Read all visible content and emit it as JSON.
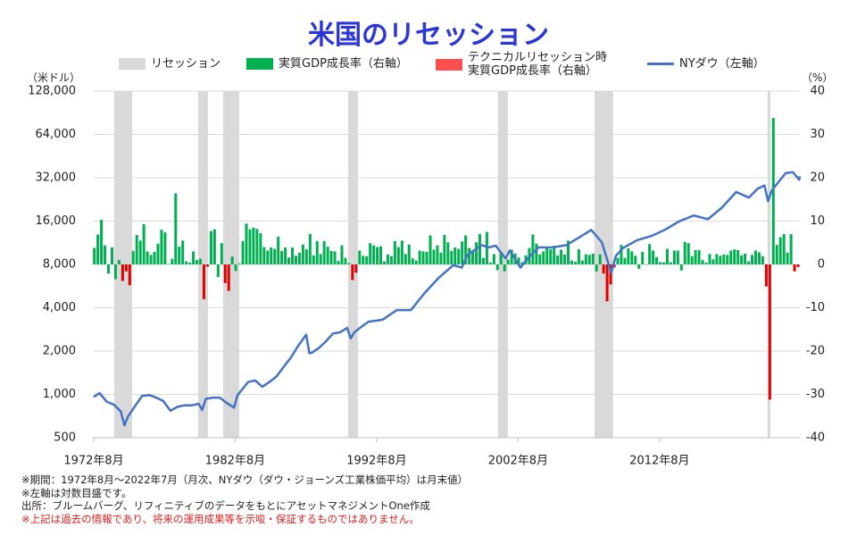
{
  "chart_data": {
    "type": "combo",
    "title": "米国のリセッション",
    "y_unit": "（米ドル）",
    "y2_unit": "（%）",
    "log_y": true,
    "grid": true,
    "xlim": [
      1972.583,
      2022.5
    ],
    "xticks": [
      {
        "value": 1972.583,
        "label": "1972年8月"
      },
      {
        "value": 1982.583,
        "label": "1982年8月"
      },
      {
        "value": 1992.583,
        "label": "1992年8月"
      },
      {
        "value": 2002.583,
        "label": "2002年8月"
      },
      {
        "value": 2012.583,
        "label": "2012年8月"
      }
    ],
    "ylim": [
      500,
      128000
    ],
    "yticks": [
      500,
      {
        "value": 1000,
        "label": "1,000"
      },
      {
        "value": 2000,
        "label": "2,000"
      },
      {
        "value": 4000,
        "label": "4,000"
      },
      {
        "value": 8000,
        "label": "8,000"
      },
      {
        "value": 16000,
        "label": "16,000"
      },
      {
        "value": 32000,
        "label": "32,000"
      },
      {
        "value": 64000,
        "label": "64,000"
      },
      {
        "value": 128000,
        "label": "128,000"
      }
    ],
    "y2lim": [
      -40,
      40
    ],
    "y2ticks": [
      -40,
      -30,
      -20,
      -10,
      0,
      10,
      20,
      30,
      40
    ],
    "recessions": {
      "name": "リセッション",
      "color": "#d9d9d9",
      "periods": [
        [
          1974.03,
          1975.3
        ],
        [
          1979.96,
          1980.66
        ],
        [
          1981.73,
          1982.87
        ],
        [
          1990.56,
          1991.26
        ],
        [
          2001.16,
          2001.86
        ],
        [
          2007.98,
          2009.3
        ],
        [
          2020.22,
          2020.41
        ]
      ]
    },
    "series": [
      {
        "name": "実質GDP成長率（右軸）",
        "kind": "bar",
        "axis": "y2",
        "color": "#00b050",
        "x": [
          1972.625,
          1972.875,
          1973.125,
          1973.375,
          1973.625,
          1973.875,
          1974.125,
          1974.375,
          1975.375,
          1975.625,
          1975.875,
          1976.125,
          1976.375,
          1976.625,
          1976.875,
          1977.125,
          1977.375,
          1977.625,
          1977.875,
          1978.125,
          1978.375,
          1978.625,
          1978.875,
          1979.125,
          1979.375,
          1979.625,
          1979.875,
          1980.125,
          1980.875,
          1981.125,
          1981.375,
          1981.625,
          1982.375,
          1982.625,
          1982.875,
          1983.125,
          1983.375,
          1983.625,
          1983.875,
          1984.125,
          1984.375,
          1984.625,
          1984.875,
          1985.125,
          1985.375,
          1985.625,
          1985.875,
          1986.125,
          1986.375,
          1986.625,
          1986.875,
          1987.125,
          1987.375,
          1987.625,
          1987.875,
          1988.125,
          1988.375,
          1988.625,
          1988.875,
          1989.125,
          1989.375,
          1989.625,
          1989.875,
          1990.125,
          1990.375,
          1990.625,
          1991.375,
          1991.625,
          1991.875,
          1992.125,
          1992.375,
          1992.625,
          1992.875,
          1993.125,
          1993.375,
          1993.625,
          1993.875,
          1994.125,
          1994.375,
          1994.625,
          1994.875,
          1995.125,
          1995.375,
          1995.625,
          1995.875,
          1996.125,
          1996.375,
          1996.625,
          1996.875,
          1997.125,
          1997.375,
          1997.625,
          1997.875,
          1998.125,
          1998.375,
          1998.625,
          1998.875,
          1999.125,
          1999.375,
          1999.625,
          1999.875,
          2000.125,
          2000.375,
          2000.625,
          2000.875,
          2001.125,
          2001.375,
          2001.625,
          2001.875,
          2002.125,
          2002.375,
          2002.625,
          2002.875,
          2003.125,
          2003.375,
          2003.625,
          2003.875,
          2004.125,
          2004.375,
          2004.625,
          2004.875,
          2005.125,
          2005.375,
          2005.625,
          2005.875,
          2006.125,
          2006.375,
          2006.625,
          2006.875,
          2007.125,
          2007.375,
          2007.625,
          2007.875,
          2008.125,
          2008.375,
          2009.625,
          2009.875,
          2010.125,
          2010.375,
          2010.625,
          2010.875,
          2011.125,
          2011.375,
          2011.625,
          2011.875,
          2012.125,
          2012.375,
          2012.625,
          2012.875,
          2013.125,
          2013.375,
          2013.625,
          2013.875,
          2014.125,
          2014.375,
          2014.625,
          2014.875,
          2015.125,
          2015.375,
          2015.625,
          2015.875,
          2016.125,
          2016.375,
          2016.625,
          2016.875,
          2017.125,
          2017.375,
          2017.625,
          2017.875,
          2018.125,
          2018.375,
          2018.625,
          2018.875,
          2019.125,
          2019.375,
          2019.625,
          2019.875,
          2020.625,
          2020.875,
          2021.125,
          2021.375,
          2021.625,
          2021.875
        ],
        "values": [
          3.8,
          6.9,
          10.3,
          4.4,
          -2.1,
          3.9,
          -3.4,
          1.0,
          3.1,
          6.8,
          5.5,
          9.3,
          3.0,
          2.2,
          2.9,
          4.8,
          8.0,
          7.4,
          0.1,
          1.3,
          16.4,
          4.1,
          5.5,
          0.7,
          0.4,
          3.0,
          1.0,
          1.3,
          7.7,
          8.1,
          -2.9,
          4.9,
          1.8,
          -1.5,
          0.2,
          5.4,
          9.4,
          8.1,
          8.5,
          8.2,
          7.2,
          4.0,
          3.2,
          3.9,
          3.6,
          6.4,
          3.1,
          3.9,
          1.6,
          3.9,
          2.0,
          2.7,
          4.6,
          3.5,
          7.0,
          2.1,
          5.4,
          2.4,
          5.4,
          4.1,
          3.1,
          3.0,
          0.8,
          4.4,
          1.5,
          0.3,
          3.2,
          2.0,
          1.9,
          4.9,
          4.4,
          4.0,
          4.2,
          0.7,
          2.3,
          1.9,
          5.4,
          4.0,
          5.5,
          2.4,
          4.6,
          1.4,
          0.9,
          3.2,
          3.0,
          2.9,
          6.7,
          3.4,
          4.4,
          2.7,
          6.8,
          5.1,
          3.1,
          3.9,
          3.6,
          5.3,
          6.7,
          3.8,
          3.3,
          5.1,
          7.0,
          1.5,
          7.5,
          0.4,
          2.4,
          -1.3,
          2.6,
          -1.6,
          1.1,
          3.4,
          2.5,
          1.6,
          0.5,
          2.1,
          3.8,
          6.9,
          4.8,
          2.3,
          3.0,
          3.7,
          3.5,
          4.3,
          2.1,
          3.4,
          2.3,
          5.5,
          0.9,
          0.6,
          3.5,
          0.9,
          2.3,
          2.2,
          2.5,
          -1.6,
          2.3,
          1.5,
          4.5,
          1.5,
          3.7,
          3.0,
          2.0,
          -1.0,
          2.9,
          -0.1,
          4.7,
          3.2,
          1.7,
          0.5,
          0.5,
          3.6,
          0.5,
          3.2,
          3.2,
          -1.4,
          5.2,
          4.9,
          1.9,
          3.3,
          3.3,
          1.0,
          0.4,
          2.4,
          1.2,
          2.4,
          2.0,
          2.3,
          2.2,
          3.2,
          3.5,
          3.3,
          2.1,
          2.5,
          0.7,
          2.2,
          3.2,
          2.8,
          1.9,
          33.8,
          4.5,
          6.3,
          7.0,
          2.7,
          7.0
        ]
      },
      {
        "name": "テクニカルリセッション時\n実質GDP成長率（右軸）",
        "kind": "bar",
        "axis": "y2",
        "color": "#e00000",
        "legend_color": "#ff5050",
        "x": [
          1974.625,
          1974.875,
          1975.125,
          1980.375,
          1980.625,
          1981.875,
          1982.125,
          1990.875,
          1991.125,
          2008.625,
          2008.875,
          2009.125,
          2009.375,
          2020.125,
          2020.375,
          2022.125,
          2022.375
        ],
        "values": [
          -3.8,
          -1.6,
          -4.8,
          -8.0,
          -0.5,
          -4.3,
          -6.1,
          -3.6,
          -1.9,
          -2.1,
          -8.5,
          -4.6,
          -0.7,
          -5.1,
          -31.2,
          -1.6,
          -0.6
        ]
      },
      {
        "name": "NYダウ（左軸）",
        "kind": "line",
        "axis": "y",
        "color": "#4472c4",
        "x": [
          1972.58,
          1973.0,
          1973.5,
          1974.0,
          1974.5,
          1974.75,
          1975.0,
          1975.5,
          1976.0,
          1976.5,
          1977.0,
          1977.5,
          1978.0,
          1978.5,
          1979.0,
          1979.5,
          1980.0,
          1980.25,
          1980.5,
          1981.0,
          1981.5,
          1982.0,
          1982.5,
          1982.75,
          1983.0,
          1983.5,
          1984.0,
          1984.5,
          1985.0,
          1985.5,
          1986.0,
          1986.5,
          1987.0,
          1987.6,
          1987.83,
          1988.0,
          1988.5,
          1989.0,
          1989.5,
          1990.0,
          1990.5,
          1990.75,
          1991.0,
          1991.5,
          1992.0,
          1993.0,
          1994.0,
          1995.0,
          1996.0,
          1997.0,
          1998.0,
          1998.6,
          1999.0,
          2000.0,
          2000.5,
          2001.0,
          2001.7,
          2002.0,
          2002.75,
          2003.0,
          2004.0,
          2005.0,
          2006.0,
          2007.0,
          2007.75,
          2008.5,
          2009.17,
          2009.5,
          2010.0,
          2011.0,
          2012.0,
          2013.0,
          2014.0,
          2015.0,
          2016.0,
          2017.0,
          2018.0,
          2018.9,
          2019.5,
          2020.0,
          2020.25,
          2020.5,
          2021.0,
          2021.5,
          2022.0,
          2022.45,
          2022.5
        ],
        "values": [
          960,
          1020,
          890,
          850,
          760,
          610,
          700,
          830,
          975,
          990,
          950,
          900,
          770,
          820,
          840,
          840,
          860,
          780,
          930,
          950,
          950,
          870,
          810,
          990,
          1060,
          1220,
          1250,
          1130,
          1220,
          1330,
          1550,
          1790,
          2150,
          2600,
          1930,
          1950,
          2100,
          2340,
          2650,
          2700,
          2900,
          2450,
          2700,
          2950,
          3200,
          3300,
          3850,
          3850,
          5100,
          6500,
          7900,
          7600,
          9300,
          10900,
          10500,
          10800,
          8800,
          10000,
          7600,
          8200,
          10500,
          10500,
          10900,
          12500,
          13900,
          11400,
          7000,
          9200,
          10400,
          11800,
          12600,
          14000,
          16000,
          17500,
          16500,
          19900,
          25500,
          23300,
          26800,
          28300,
          22000,
          26000,
          30000,
          34500,
          35000,
          31000,
          32800
        ]
      }
    ],
    "notes": [
      "※期間：1972年8月～2022年7月（月次、NYダウ（ダウ・ジョーンズ工業株価平均）は月末値）",
      "※左軸は対数目盛です。",
      "出所：ブルームバーグ、リフィニティブのデータをもとにアセットマネジメントOne作成",
      "※上記は過去の情報であり、将来の運用成果等を示唆・保証するものではありません。"
    ]
  }
}
